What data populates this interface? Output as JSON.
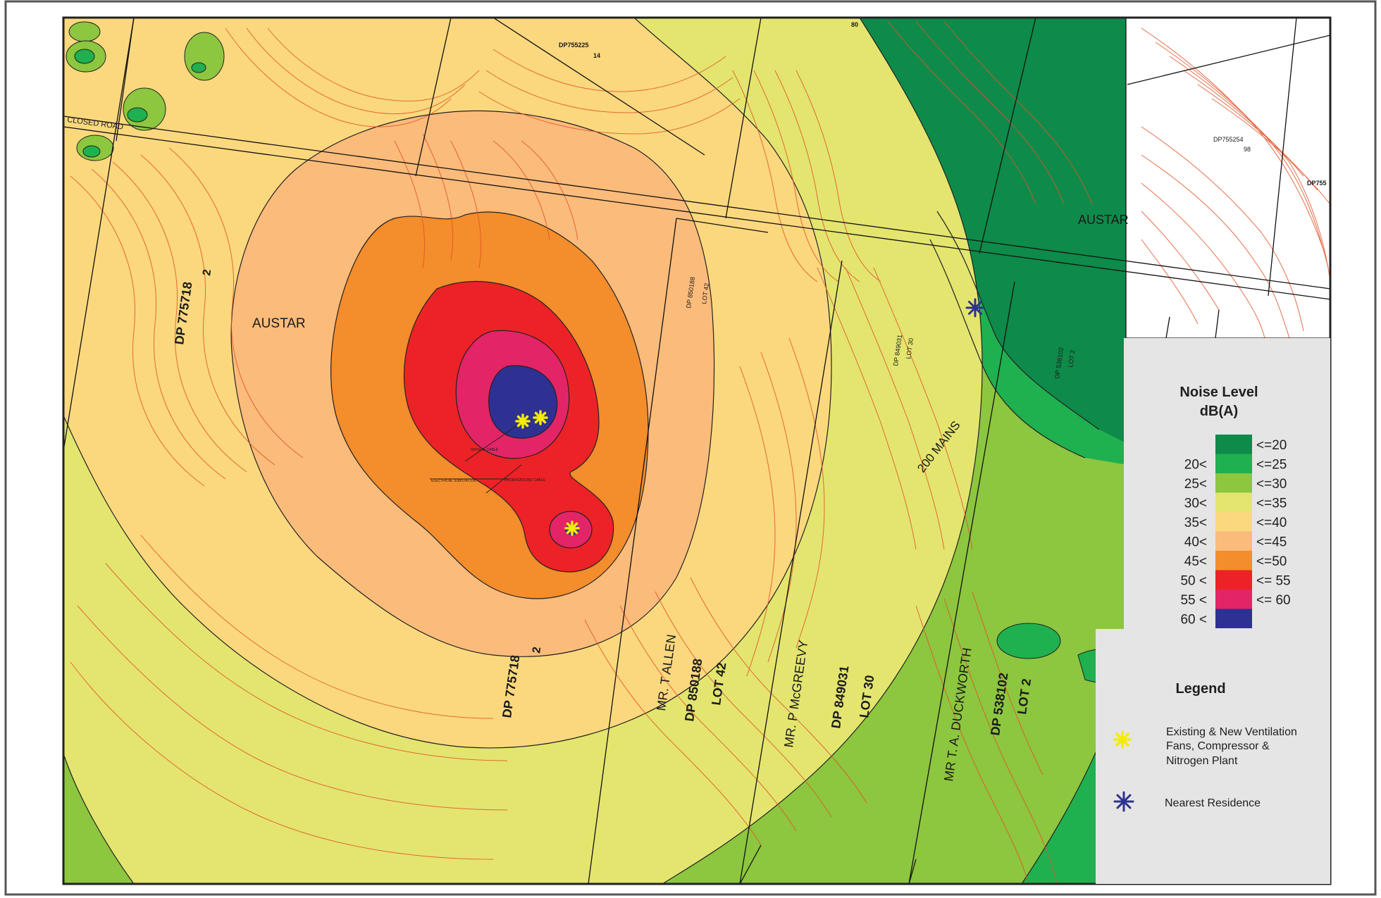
{
  "map": {
    "road_label": "CLOSED ROAD",
    "austar_labels": [
      "AUSTAR",
      "AUSTAR"
    ],
    "parcels": {
      "dp755225": "DP755225",
      "dp755225_lot": "14",
      "dp755254": "DP755254",
      "dp755254_lot": "98",
      "dp755_cut": "DP755",
      "dp775718_a": "DP 775718",
      "dp775718_a_lot": "2",
      "dp775718_b": "DP 775718",
      "dp775718_b_lot": "2",
      "dp850188_small": "DP 850188",
      "lot42_small": "LOT 42",
      "dp849031_small": "DP 849031",
      "lot30_small": "LOT 30",
      "dp538102_small": "DP 538102",
      "lot2_small": "LOT 2",
      "owner_allen": "MR. T ALLEN",
      "dp850188": "DP 850188",
      "lot42": "LOT 42",
      "owner_mcgreevy": "MR. P McGREEVY",
      "dp849031": "DP 849031",
      "lot30": "LOT 30",
      "owner_duckworth": "MR T. A. DUCKWORTH",
      "dp538102": "DP 538102",
      "lot2": "LOT 2",
      "mains": "200 MAINS"
    },
    "site_labels": {
      "cable_1": "OFFSITE CABLE",
      "substation": "ELECTRICAL SUBSTATION",
      "cable_2": "UNDERGROUND CABLE"
    },
    "top_tick": "80"
  },
  "noise_legend": {
    "title_line1": "Noise Level",
    "title_line2": "dB(A)",
    "bands": [
      {
        "lower": "",
        "upper": "<=20",
        "color": "#0e8a4a"
      },
      {
        "lower": "20<",
        "upper": "<=25",
        "color": "#1fb04f"
      },
      {
        "lower": "25<",
        "upper": "<=30",
        "color": "#8dc63f"
      },
      {
        "lower": "30<",
        "upper": "<=35",
        "color": "#e3e56f"
      },
      {
        "lower": "35<",
        "upper": "<=40",
        "color": "#fbd87e"
      },
      {
        "lower": "40<",
        "upper": "<=45",
        "color": "#fbbb7b"
      },
      {
        "lower": "45<",
        "upper": "<=50",
        "color": "#f48d2b"
      },
      {
        "lower": "50 <",
        "upper": "<= 55",
        "color": "#ec2227"
      },
      {
        "lower": "55 <",
        "upper": "<= 60",
        "color": "#e32466"
      },
      {
        "lower": "60 <",
        "upper": "",
        "color": "#2e3192"
      }
    ]
  },
  "legend": {
    "title": "Legend",
    "fans_line1": "Existing & New Ventilation",
    "fans_line2": "Fans, Compressor &",
    "fans_line3": "Nitrogen Plant",
    "residence": "Nearest Residence",
    "fans_icon": "yellow-asterisk-icon",
    "residence_icon": "blue-asterisk-icon"
  }
}
